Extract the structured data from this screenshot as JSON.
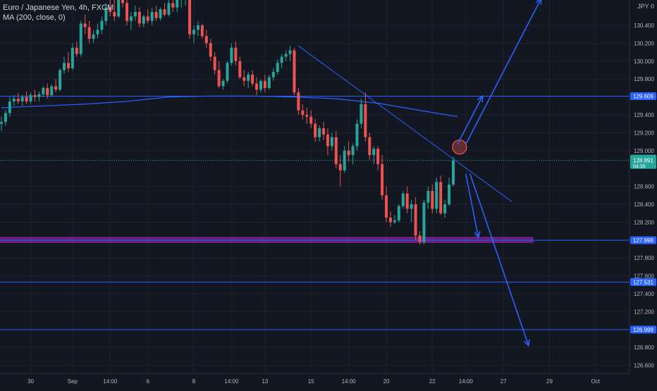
{
  "legend": {
    "symbol_line": "Euro / Japanese Yen, 4h, FXCM",
    "ma_line": "MA (200, close, 0)"
  },
  "currency_label": "JPY 0",
  "colors": {
    "background": "#131722",
    "grid": "#1e222d",
    "up": "#26a69a",
    "down": "#ef5350",
    "ma": "#2962ff",
    "level": "#2962ff",
    "zone": "#9c27b0",
    "axis_text": "#b2b5be"
  },
  "chart_data": {
    "type": "candlestick",
    "symbol": "EURJPY",
    "timeframe": "4h",
    "y_axis": {
      "min": 126.5,
      "max": 130.78,
      "ticks": [
        "130.400",
        "130.200",
        "130.000",
        "129.800",
        "129.400",
        "129.200",
        "129.000",
        "128.600",
        "128.400",
        "128.200",
        "127.800",
        "127.600",
        "127.400",
        "127.200",
        "126.800",
        "126.600"
      ]
    },
    "x_axis": {
      "ticks": [
        {
          "label": "30",
          "index": 7
        },
        {
          "label": "Sep",
          "index": 17
        },
        {
          "label": "14:00",
          "index": 26
        },
        {
          "label": "6",
          "index": 35
        },
        {
          "label": "8",
          "index": 46
        },
        {
          "label": "14:00",
          "index": 55
        },
        {
          "label": "13",
          "index": 63
        },
        {
          "label": "15",
          "index": 74
        },
        {
          "label": "14:00",
          "index": 83
        },
        {
          "label": "20",
          "index": 92
        },
        {
          "label": "22",
          "index": 103
        },
        {
          "label": "14:00",
          "index": 111
        },
        {
          "label": "27",
          "index": 120
        },
        {
          "label": "29",
          "index": 131
        },
        {
          "label": "Oct",
          "index": 142
        }
      ]
    },
    "price_labels": [
      {
        "value": 129.609,
        "label": "129.609",
        "style": "level"
      },
      {
        "value": 128.891,
        "label": "128.891",
        "sub": "04:35",
        "style": "last"
      },
      {
        "value": 127.998,
        "label": "127.998",
        "style": "level"
      },
      {
        "value": 127.531,
        "label": "127.531",
        "style": "level"
      },
      {
        "value": 126.999,
        "label": "126.999",
        "style": "level"
      }
    ],
    "levels": [
      {
        "value": 129.609,
        "from_index": 0,
        "to_index": 150
      },
      {
        "value": 127.531,
        "from_index": 0,
        "to_index": 150
      },
      {
        "value": 126.999,
        "from_index": 0,
        "to_index": 150
      }
    ],
    "zone": {
      "value": 127.998,
      "from_index": 0,
      "to_index": 127
    },
    "last_price": 128.891,
    "trendline": {
      "from": [
        71,
        130.17
      ],
      "to": [
        122,
        128.43
      ]
    },
    "circle": {
      "index": 109.5,
      "value": 129.04
    },
    "arrows": [
      {
        "from": [
          109,
          129.07
        ],
        "to": [
          115,
          129.61
        ]
      },
      {
        "from": [
          111,
          129.07
        ],
        "to": [
          129,
          130.7
        ]
      },
      {
        "from": [
          111,
          128.74
        ],
        "to": [
          114,
          128.03
        ]
      },
      {
        "from": [
          112,
          128.74
        ],
        "to": [
          126,
          126.82
        ]
      }
    ],
    "ma_points": [
      [
        0,
        129.48
      ],
      [
        10,
        129.5
      ],
      [
        20,
        129.52
      ],
      [
        30,
        129.55
      ],
      [
        40,
        129.6
      ],
      [
        50,
        129.61
      ],
      [
        60,
        129.61
      ],
      [
        70,
        129.6
      ],
      [
        80,
        129.58
      ],
      [
        90,
        129.53
      ],
      [
        100,
        129.45
      ],
      [
        109,
        129.38
      ]
    ],
    "candles": [
      [
        129.3,
        129.38,
        129.22,
        129.32
      ],
      [
        129.32,
        129.45,
        129.28,
        129.42
      ],
      [
        129.42,
        129.6,
        129.38,
        129.55
      ],
      [
        129.55,
        129.62,
        129.5,
        129.58
      ],
      [
        129.58,
        129.64,
        129.52,
        129.55
      ],
      [
        129.55,
        129.62,
        129.5,
        129.6
      ],
      [
        129.6,
        129.66,
        129.52,
        129.55
      ],
      [
        129.55,
        129.65,
        129.52,
        129.62
      ],
      [
        129.62,
        129.68,
        129.55,
        129.6
      ],
      [
        129.6,
        129.66,
        129.55,
        129.63
      ],
      [
        129.63,
        129.72,
        129.6,
        129.7
      ],
      [
        129.7,
        129.75,
        129.58,
        129.62
      ],
      [
        129.62,
        129.74,
        129.6,
        129.72
      ],
      [
        129.72,
        129.8,
        129.65,
        129.68
      ],
      [
        129.68,
        129.92,
        129.66,
        129.9
      ],
      [
        129.9,
        130.05,
        129.86,
        129.98
      ],
      [
        129.98,
        130.1,
        129.88,
        129.92
      ],
      [
        129.92,
        130.2,
        129.9,
        130.15
      ],
      [
        130.15,
        130.22,
        130.05,
        130.08
      ],
      [
        130.08,
        130.45,
        130.05,
        130.42
      ],
      [
        130.42,
        130.52,
        130.3,
        130.38
      ],
      [
        130.38,
        130.45,
        130.2,
        130.25
      ],
      [
        130.25,
        130.35,
        130.2,
        130.3
      ],
      [
        130.3,
        130.42,
        130.25,
        130.35
      ],
      [
        130.35,
        130.5,
        130.3,
        130.45
      ],
      [
        130.45,
        130.65,
        130.4,
        130.6
      ],
      [
        130.6,
        130.72,
        130.5,
        130.55
      ],
      [
        130.55,
        130.7,
        130.45,
        130.5
      ],
      [
        130.5,
        130.78,
        130.48,
        130.75
      ],
      [
        130.75,
        130.78,
        130.6,
        130.65
      ],
      [
        130.65,
        130.7,
        130.4,
        130.45
      ],
      [
        130.45,
        130.55,
        130.35,
        130.5
      ],
      [
        130.5,
        130.62,
        130.45,
        130.55
      ],
      [
        130.55,
        130.6,
        130.38,
        130.42
      ],
      [
        130.42,
        130.52,
        130.38,
        130.5
      ],
      [
        130.5,
        130.58,
        130.42,
        130.45
      ],
      [
        130.45,
        130.6,
        130.4,
        130.55
      ],
      [
        130.55,
        130.62,
        130.45,
        130.48
      ],
      [
        130.48,
        130.6,
        130.45,
        130.58
      ],
      [
        130.58,
        130.65,
        130.5,
        130.52
      ],
      [
        130.52,
        130.7,
        130.5,
        130.65
      ],
      [
        130.65,
        130.72,
        130.55,
        130.6
      ],
      [
        130.6,
        130.75,
        130.55,
        130.7
      ],
      [
        130.7,
        130.78,
        130.6,
        130.72
      ],
      [
        130.72,
        130.78,
        130.62,
        130.75
      ],
      [
        130.75,
        130.78,
        130.25,
        130.3
      ],
      [
        130.3,
        130.4,
        130.2,
        130.35
      ],
      [
        130.35,
        130.45,
        130.28,
        130.4
      ],
      [
        130.4,
        130.42,
        130.25,
        130.28
      ],
      [
        130.28,
        130.35,
        130.15,
        130.2
      ],
      [
        130.2,
        130.25,
        130.0,
        130.05
      ],
      [
        130.05,
        130.1,
        129.85,
        129.9
      ],
      [
        129.9,
        130.0,
        129.7,
        129.72
      ],
      [
        129.72,
        129.8,
        129.68,
        129.78
      ],
      [
        129.78,
        130.0,
        129.75,
        129.98
      ],
      [
        129.98,
        130.2,
        129.95,
        130.15
      ],
      [
        130.15,
        130.22,
        129.95,
        130.0
      ],
      [
        130.0,
        130.05,
        129.8,
        129.82
      ],
      [
        129.82,
        129.9,
        129.72,
        129.78
      ],
      [
        129.78,
        129.88,
        129.7,
        129.85
      ],
      [
        129.85,
        129.9,
        129.72,
        129.75
      ],
      [
        129.75,
        129.82,
        129.62,
        129.68
      ],
      [
        129.68,
        129.8,
        129.65,
        129.78
      ],
      [
        129.78,
        129.85,
        129.65,
        129.7
      ],
      [
        129.7,
        129.85,
        129.68,
        129.82
      ],
      [
        129.82,
        129.92,
        129.78,
        129.88
      ],
      [
        129.88,
        130.02,
        129.85,
        129.98
      ],
      [
        129.98,
        130.08,
        129.92,
        130.05
      ],
      [
        130.05,
        130.12,
        130.0,
        130.08
      ],
      [
        130.08,
        130.17,
        130.0,
        130.12
      ],
      [
        130.12,
        130.15,
        129.62,
        129.65
      ],
      [
        129.65,
        129.7,
        129.4,
        129.45
      ],
      [
        129.45,
        129.52,
        129.35,
        129.4
      ],
      [
        129.4,
        129.48,
        129.3,
        129.38
      ],
      [
        129.38,
        129.45,
        129.25,
        129.3
      ],
      [
        129.3,
        129.35,
        129.1,
        129.15
      ],
      [
        129.15,
        129.28,
        129.1,
        129.25
      ],
      [
        129.25,
        129.32,
        129.12,
        129.18
      ],
      [
        129.18,
        129.25,
        128.95,
        129.05
      ],
      [
        129.05,
        129.2,
        129.0,
        129.15
      ],
      [
        129.15,
        129.22,
        128.8,
        128.85
      ],
      [
        128.85,
        128.95,
        128.6,
        128.78
      ],
      [
        128.78,
        129.05,
        128.75,
        129.0
      ],
      [
        129.0,
        129.1,
        128.88,
        128.95
      ],
      [
        128.95,
        129.08,
        128.85,
        129.05
      ],
      [
        129.05,
        129.35,
        129.0,
        129.3
      ],
      [
        129.3,
        129.58,
        129.25,
        129.52
      ],
      [
        129.52,
        129.65,
        129.1,
        129.15
      ],
      [
        129.15,
        129.2,
        128.9,
        128.95
      ],
      [
        128.95,
        129.05,
        128.85,
        129.02
      ],
      [
        129.02,
        129.05,
        128.78,
        128.85
      ],
      [
        128.85,
        128.95,
        128.45,
        128.5
      ],
      [
        128.5,
        128.6,
        128.2,
        128.25
      ],
      [
        128.25,
        128.32,
        128.15,
        128.2
      ],
      [
        128.2,
        128.28,
        128.18,
        128.22
      ],
      [
        128.22,
        128.4,
        128.2,
        128.38
      ],
      [
        128.38,
        128.55,
        128.35,
        128.52
      ],
      [
        128.52,
        128.6,
        128.3,
        128.35
      ],
      [
        128.35,
        128.45,
        128.2,
        128.4
      ],
      [
        128.4,
        128.48,
        128.0,
        128.05
      ],
      [
        128.05,
        128.1,
        127.95,
        127.98
      ],
      [
        127.98,
        128.45,
        127.95,
        128.42
      ],
      [
        128.42,
        128.6,
        128.35,
        128.55
      ],
      [
        128.55,
        128.62,
        128.3,
        128.35
      ],
      [
        128.35,
        128.7,
        128.3,
        128.65
      ],
      [
        128.65,
        128.72,
        128.28,
        128.3
      ],
      [
        128.3,
        128.45,
        128.25,
        128.4
      ],
      [
        128.4,
        128.7,
        128.38,
        128.62
      ],
      [
        128.62,
        128.93,
        128.6,
        128.89
      ]
    ]
  }
}
